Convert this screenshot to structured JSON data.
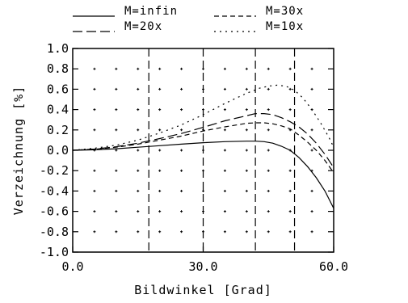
{
  "chart_data": {
    "type": "line",
    "title": "",
    "xlabel": "Bildwinkel [Grad]",
    "ylabel": "Verzeichnung [%]",
    "xlim": [
      0,
      60
    ],
    "ylim": [
      -1.0,
      1.0
    ],
    "xticks": [
      0,
      30,
      60
    ],
    "xtick_labels": [
      "0.0",
      "30.0",
      "60.0"
    ],
    "yticks": [
      -1.0,
      -0.8,
      -0.6,
      -0.4,
      -0.2,
      0.0,
      0.2,
      0.4,
      0.6,
      0.8,
      1.0
    ],
    "ytick_labels": [
      "-1.0",
      "-0.8",
      "-0.6",
      "-0.4",
      "-0.2",
      "0.0",
      "0.2",
      "0.4",
      "0.6",
      "0.8",
      "1.0"
    ],
    "grid": "dots",
    "legend_position": "top",
    "vertical_markers": [
      17.5,
      30.0,
      42.0,
      51.0
    ],
    "series": [
      {
        "name": "M=infin",
        "dash": "solid",
        "x": [
          0,
          5,
          10,
          15,
          20,
          25,
          30,
          35,
          40,
          42,
          44,
          46,
          48,
          50,
          52,
          54,
          56,
          58,
          60
        ],
        "y": [
          0,
          0.005,
          0.015,
          0.03,
          0.045,
          0.06,
          0.075,
          0.085,
          0.09,
          0.09,
          0.085,
          0.07,
          0.04,
          0.0,
          -0.07,
          -0.16,
          -0.27,
          -0.4,
          -0.57
        ]
      },
      {
        "name": "M=30x",
        "dash": "short",
        "x": [
          0,
          5,
          10,
          15,
          20,
          25,
          30,
          35,
          40,
          42,
          44,
          46,
          48,
          50,
          52,
          54,
          56,
          58,
          60
        ],
        "y": [
          0,
          0.01,
          0.03,
          0.06,
          0.1,
          0.14,
          0.19,
          0.23,
          0.265,
          0.27,
          0.27,
          0.26,
          0.24,
          0.21,
          0.15,
          0.08,
          0.0,
          -0.1,
          -0.22
        ]
      },
      {
        "name": "M=20x",
        "dash": "long",
        "x": [
          0,
          5,
          10,
          15,
          20,
          25,
          30,
          35,
          40,
          42,
          44,
          46,
          48,
          50,
          52,
          54,
          56,
          58,
          60
        ],
        "y": [
          0,
          0.012,
          0.035,
          0.07,
          0.115,
          0.165,
          0.225,
          0.29,
          0.34,
          0.36,
          0.36,
          0.35,
          0.32,
          0.28,
          0.23,
          0.16,
          0.07,
          -0.04,
          -0.17
        ]
      },
      {
        "name": "M=10x",
        "dash": "dotted",
        "x": [
          0,
          5,
          10,
          15,
          20,
          25,
          30,
          35,
          40,
          43,
          45,
          47,
          49,
          51,
          53,
          55,
          57,
          59,
          60
        ],
        "y": [
          0,
          0.02,
          0.05,
          0.1,
          0.17,
          0.25,
          0.35,
          0.46,
          0.56,
          0.61,
          0.63,
          0.64,
          0.63,
          0.59,
          0.51,
          0.4,
          0.27,
          0.12,
          0.03
        ]
      }
    ]
  }
}
